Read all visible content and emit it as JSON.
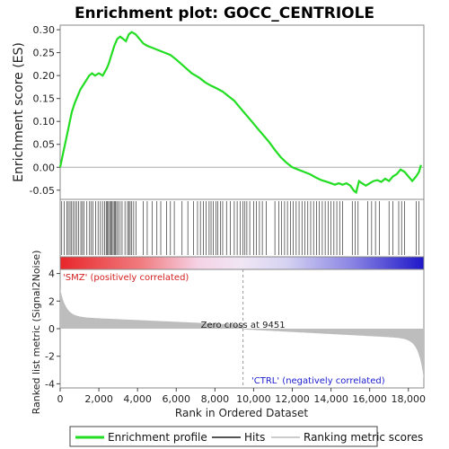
{
  "chart_data": {
    "type": "line",
    "title": "Enrichment plot: GOCC_CENTRIOLE",
    "ylabel_top": "Enrichment score (ES)",
    "ylabel_bottom": "Ranked list metric (Signal2Noise)",
    "xlabel": "Rank in Ordered Dataset",
    "xlim": [
      0,
      18800
    ],
    "es_ylim": [
      -0.07,
      0.31
    ],
    "es_ticks": [
      "0.30",
      "0.25",
      "0.20",
      "0.15",
      "0.10",
      "0.05",
      "0.00",
      "-0.05"
    ],
    "es_tick_values": [
      0.3,
      0.25,
      0.2,
      0.15,
      0.1,
      0.05,
      0.0,
      -0.05
    ],
    "metric_ylim": [
      -4.3,
      4.3
    ],
    "metric_ticks": [
      "4",
      "2",
      "0",
      "-2",
      "-4"
    ],
    "metric_tick_values": [
      4,
      2,
      0,
      -2,
      -4
    ],
    "x_ticks": [
      "0",
      "2,000",
      "4,000",
      "6,000",
      "8,000",
      "10,000",
      "12,000",
      "14,000",
      "16,000",
      "18,000"
    ],
    "x_tick_values": [
      0,
      2000,
      4000,
      6000,
      8000,
      10000,
      12000,
      14000,
      16000,
      18000
    ],
    "zero_cross": 9451,
    "zero_cross_label": "Zero cross at 9451",
    "pos_label": "'SMZ' (positively correlated)",
    "neg_label": "'CTRL' (negatively correlated)",
    "series": [
      {
        "name": "Enrichment profile",
        "x": [
          0,
          150,
          300,
          450,
          600,
          750,
          900,
          1050,
          1200,
          1350,
          1500,
          1650,
          1800,
          2000,
          2200,
          2400,
          2500,
          2650,
          2800,
          2950,
          3100,
          3250,
          3400,
          3550,
          3700,
          3900,
          4100,
          4300,
          4500,
          4800,
          5100,
          5400,
          5700,
          6000,
          6400,
          6800,
          7200,
          7500,
          7800,
          8100,
          8400,
          8700,
          9000,
          9300,
          9600,
          9900,
          10200,
          10500,
          10800,
          11100,
          11400,
          11700,
          12000,
          12300,
          12600,
          12900,
          13200,
          13500,
          13800,
          14000,
          14200,
          14400,
          14600,
          14800,
          15000,
          15200,
          15300,
          15450,
          15600,
          15800,
          16000,
          16200,
          16400,
          16600,
          16800,
          17000,
          17200,
          17400,
          17600,
          17800,
          18000,
          18200,
          18400,
          18550,
          18650
        ],
        "y": [
          0.0,
          0.03,
          0.06,
          0.09,
          0.12,
          0.14,
          0.155,
          0.17,
          0.18,
          0.19,
          0.2,
          0.205,
          0.2,
          0.205,
          0.2,
          0.215,
          0.225,
          0.245,
          0.265,
          0.28,
          0.285,
          0.28,
          0.275,
          0.29,
          0.295,
          0.29,
          0.28,
          0.27,
          0.265,
          0.26,
          0.255,
          0.25,
          0.245,
          0.235,
          0.22,
          0.205,
          0.195,
          0.185,
          0.178,
          0.172,
          0.165,
          0.155,
          0.145,
          0.13,
          0.115,
          0.1,
          0.085,
          0.07,
          0.055,
          0.038,
          0.022,
          0.01,
          0.0,
          -0.005,
          -0.01,
          -0.015,
          -0.022,
          -0.028,
          -0.032,
          -0.035,
          -0.038,
          -0.035,
          -0.038,
          -0.035,
          -0.04,
          -0.052,
          -0.055,
          -0.03,
          -0.035,
          -0.04,
          -0.035,
          -0.03,
          -0.028,
          -0.032,
          -0.025,
          -0.03,
          -0.02,
          -0.015,
          -0.005,
          -0.01,
          -0.02,
          -0.03,
          -0.02,
          -0.01,
          0.005
        ]
      },
      {
        "name": "Hits",
        "positions": [
          80,
          210,
          340,
          420,
          510,
          590,
          680,
          760,
          850,
          960,
          1070,
          1150,
          1230,
          1380,
          1520,
          1610,
          1700,
          1840,
          1960,
          2080,
          2190,
          2300,
          2380,
          2440,
          2500,
          2560,
          2620,
          2680,
          2740,
          2800,
          2860,
          2920,
          3000,
          3100,
          3200,
          3350,
          3480,
          3550,
          3620,
          3700,
          3800,
          3920,
          4300,
          4500,
          4750,
          5000,
          5200,
          5500,
          5700,
          5900,
          6300,
          6600,
          6900,
          7100,
          7250,
          7400,
          7550,
          7700,
          7800,
          7920,
          8050,
          8150,
          8280,
          8400,
          8600,
          8800,
          9000,
          9150,
          9300,
          9450,
          9550,
          9650,
          9800,
          10000,
          10150,
          10300,
          10450,
          10650,
          11100,
          11300,
          11450,
          11600,
          11750,
          11900,
          12050,
          12200,
          12350,
          12500,
          12650,
          12800,
          12950,
          13100,
          13250,
          13400,
          13550,
          13700,
          13850,
          14000,
          14150,
          14300,
          14450,
          14600,
          15100,
          15250,
          15400,
          15900,
          16100,
          16300,
          16500,
          17000,
          17200,
          17500,
          17650,
          17800,
          18400,
          18550
        ]
      },
      {
        "name": "Ranking metric scores"
      }
    ]
  }
}
